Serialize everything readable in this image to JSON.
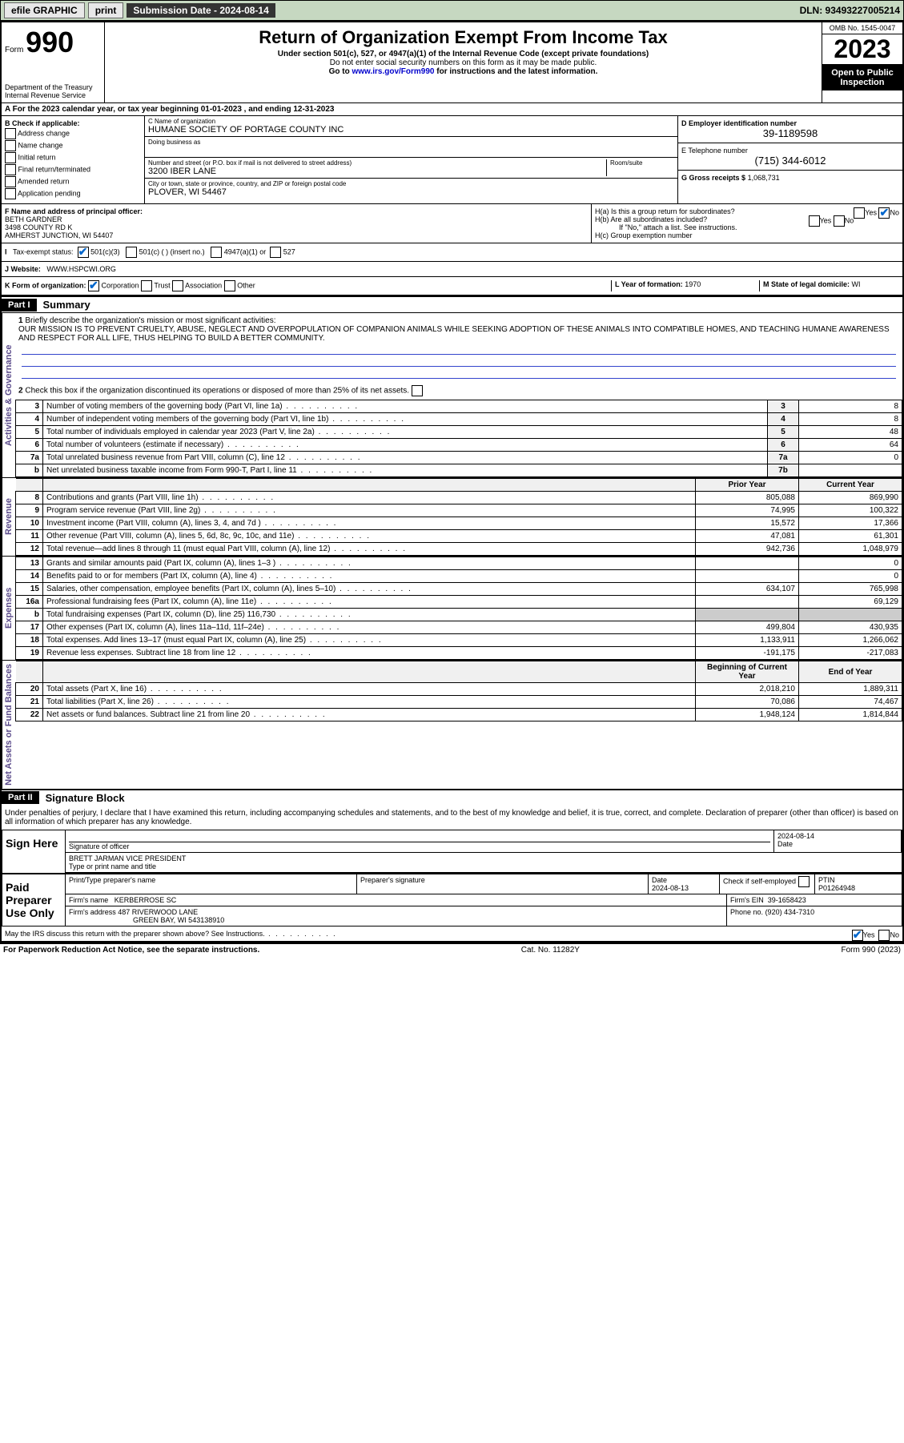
{
  "topbar": {
    "efile": "efile GRAPHIC",
    "print": "print",
    "submission": "Submission Date - 2024-08-14",
    "dln": "DLN: 93493227005214"
  },
  "header": {
    "form_label": "Form",
    "form_num": "990",
    "title": "Return of Organization Exempt From Income Tax",
    "sub1": "Under section 501(c), 527, or 4947(a)(1) of the Internal Revenue Code (except private foundations)",
    "sub2": "Do not enter social security numbers on this form as it may be made public.",
    "sub3_pre": "Go to ",
    "sub3_link": "www.irs.gov/Form990",
    "sub3_post": " for instructions and the latest information.",
    "omb": "OMB No. 1545-0047",
    "year": "2023",
    "open": "Open to Public Inspection",
    "dept": "Department of the Treasury Internal Revenue Service"
  },
  "period": {
    "line": "For the 2023 calendar year, or tax year beginning 01-01-2023   , and ending 12-31-2023"
  },
  "boxB": {
    "title": "B Check if applicable:",
    "opts": [
      "Address change",
      "Name change",
      "Initial return",
      "Final return/terminated",
      "Amended return",
      "Application pending"
    ]
  },
  "boxC": {
    "name_label": "C Name of organization",
    "name": "HUMANE SOCIETY OF PORTAGE COUNTY INC",
    "dba_label": "Doing business as",
    "addr_label": "Number and street (or P.O. box if mail is not delivered to street address)",
    "room_label": "Room/suite",
    "addr": "3200 IBER LANE",
    "city_label": "City or town, state or province, country, and ZIP or foreign postal code",
    "city": "PLOVER, WI  54467"
  },
  "boxD": {
    "ein_label": "D Employer identification number",
    "ein": "39-1189598",
    "phone_label": "E Telephone number",
    "phone": "(715) 344-6012",
    "gross_label": "G Gross receipts $",
    "gross": "1,068,731"
  },
  "boxF": {
    "label": "F Name and address of principal officer:",
    "name": "BETH GARDNER",
    "addr1": "3498 COUNTY RD K",
    "addr2": "AMHERST JUNCTION, WI  54407"
  },
  "boxH": {
    "ha": "H(a)  Is this a group return for subordinates?",
    "hb": "H(b)  Are all subordinates included?",
    "hb_note": "If \"No,\" attach a list. See instructions.",
    "hc": "H(c)  Group exemption number",
    "yes": "Yes",
    "no": "No"
  },
  "taxExempt": {
    "label": "Tax-exempt status:",
    "o1": "501(c)(3)",
    "o2": "501(c) (   ) (insert no.)",
    "o3": "4947(a)(1) or",
    "o4": "527"
  },
  "website": {
    "label": "J   Website:",
    "val": "WWW.HSPCWI.ORG"
  },
  "boxK": {
    "label": "K Form of organization:",
    "o1": "Corporation",
    "o2": "Trust",
    "o3": "Association",
    "o4": "Other"
  },
  "boxL": {
    "label": "L Year of formation:",
    "val": "1970"
  },
  "boxM": {
    "label": "M State of legal domicile:",
    "val": "WI"
  },
  "part1": {
    "header": "Part I",
    "title": "Summary",
    "q1_label": "Briefly describe the organization's mission or most significant activities:",
    "q1": "OUR MISSION IS TO PREVENT CRUELTY, ABUSE, NEGLECT AND OVERPOPULATION OF COMPANION ANIMALS WHILE SEEKING ADOPTION OF THESE ANIMALS INTO COMPATIBLE HOMES, AND TEACHING HUMANE AWARENESS AND RESPECT FOR ALL LIFE, THUS HELPING TO BUILD A BETTER COMMUNITY.",
    "q2": "Check this box  if the organization discontinued its operations or disposed of more than 25% of its net assets.",
    "sections": {
      "governance": "Activities & Governance",
      "revenue": "Revenue",
      "expenses": "Expenses",
      "netassets": "Net Assets or Fund Balances"
    },
    "rows_single": [
      {
        "n": "3",
        "label": "Number of voting members of the governing body (Part VI, line 1a)",
        "box": "3",
        "val": "8"
      },
      {
        "n": "4",
        "label": "Number of independent voting members of the governing body (Part VI, line 1b)",
        "box": "4",
        "val": "8"
      },
      {
        "n": "5",
        "label": "Total number of individuals employed in calendar year 2023 (Part V, line 2a)",
        "box": "5",
        "val": "48"
      },
      {
        "n": "6",
        "label": "Total number of volunteers (estimate if necessary)",
        "box": "6",
        "val": "64"
      },
      {
        "n": "7a",
        "label": "Total unrelated business revenue from Part VIII, column (C), line 12",
        "box": "7a",
        "val": "0"
      },
      {
        "n": "b",
        "label": "Net unrelated business taxable income from Form 990-T, Part I, line 11",
        "box": "7b",
        "val": ""
      }
    ],
    "col_prior": "Prior Year",
    "col_current": "Current Year",
    "rows_rev": [
      {
        "n": "8",
        "label": "Contributions and grants (Part VIII, line 1h)",
        "p": "805,088",
        "c": "869,990"
      },
      {
        "n": "9",
        "label": "Program service revenue (Part VIII, line 2g)",
        "p": "74,995",
        "c": "100,322"
      },
      {
        "n": "10",
        "label": "Investment income (Part VIII, column (A), lines 3, 4, and 7d )",
        "p": "15,572",
        "c": "17,366"
      },
      {
        "n": "11",
        "label": "Other revenue (Part VIII, column (A), lines 5, 6d, 8c, 9c, 10c, and 11e)",
        "p": "47,081",
        "c": "61,301"
      },
      {
        "n": "12",
        "label": "Total revenue—add lines 8 through 11 (must equal Part VIII, column (A), line 12)",
        "p": "942,736",
        "c": "1,048,979"
      }
    ],
    "rows_exp": [
      {
        "n": "13",
        "label": "Grants and similar amounts paid (Part IX, column (A), lines 1–3 )",
        "p": "",
        "c": "0"
      },
      {
        "n": "14",
        "label": "Benefits paid to or for members (Part IX, column (A), line 4)",
        "p": "",
        "c": "0"
      },
      {
        "n": "15",
        "label": "Salaries, other compensation, employee benefits (Part IX, column (A), lines 5–10)",
        "p": "634,107",
        "c": "765,998"
      },
      {
        "n": "16a",
        "label": "Professional fundraising fees (Part IX, column (A), line 11e)",
        "p": "",
        "c": "69,129"
      },
      {
        "n": "b",
        "label": "Total fundraising expenses (Part IX, column (D), line 25) 116,730",
        "p": "—",
        "c": "—"
      },
      {
        "n": "17",
        "label": "Other expenses (Part IX, column (A), lines 11a–11d, 11f–24e)",
        "p": "499,804",
        "c": "430,935"
      },
      {
        "n": "18",
        "label": "Total expenses. Add lines 13–17 (must equal Part IX, column (A), line 25)",
        "p": "1,133,911",
        "c": "1,266,062"
      },
      {
        "n": "19",
        "label": "Revenue less expenses. Subtract line 18 from line 12",
        "p": "-191,175",
        "c": "-217,083"
      }
    ],
    "col_begin": "Beginning of Current Year",
    "col_end": "End of Year",
    "rows_net": [
      {
        "n": "20",
        "label": "Total assets (Part X, line 16)",
        "p": "2,018,210",
        "c": "1,889,311"
      },
      {
        "n": "21",
        "label": "Total liabilities (Part X, line 26)",
        "p": "70,086",
        "c": "74,467"
      },
      {
        "n": "22",
        "label": "Net assets or fund balances. Subtract line 21 from line 20",
        "p": "1,948,124",
        "c": "1,814,844"
      }
    ]
  },
  "part2": {
    "header": "Part II",
    "title": "Signature Block",
    "decl": "Under penalties of perjury, I declare that I have examined this return, including accompanying schedules and statements, and to the best of my knowledge and belief, it is true, correct, and complete. Declaration of preparer (other than officer) is based on all information of which preparer has any knowledge."
  },
  "sign": {
    "here": "Sign Here",
    "sig_label": "Signature of officer",
    "date": "2024-08-14",
    "date_label": "Date",
    "officer": "BRETT JARMAN  VICE PRESIDENT",
    "type_label": "Type or print name and title"
  },
  "preparer": {
    "here": "Paid Preparer Use Only",
    "name_label": "Print/Type preparer's name",
    "sig_label": "Preparer's signature",
    "date_label": "Date",
    "date": "2024-08-13",
    "check_label": "Check         if self-employed",
    "ptin_label": "PTIN",
    "ptin": "P01264948",
    "firm_label": "Firm's name",
    "firm": "KERBERROSE SC",
    "ein_label": "Firm's EIN",
    "ein": "39-1658423",
    "addr_label": "Firm's address",
    "addr1": "487 RIVERWOOD LANE",
    "addr2": "GREEN BAY, WI  543138910",
    "phone_label": "Phone no.",
    "phone": "(920) 434-7310"
  },
  "discuss": {
    "q": "May the IRS discuss this return with the preparer shown above? See Instructions.",
    "yes": "Yes",
    "no": "No"
  },
  "footer": {
    "left": "For Paperwork Reduction Act Notice, see the separate instructions.",
    "mid": "Cat. No. 11282Y",
    "right": "Form 990 (2023)"
  }
}
